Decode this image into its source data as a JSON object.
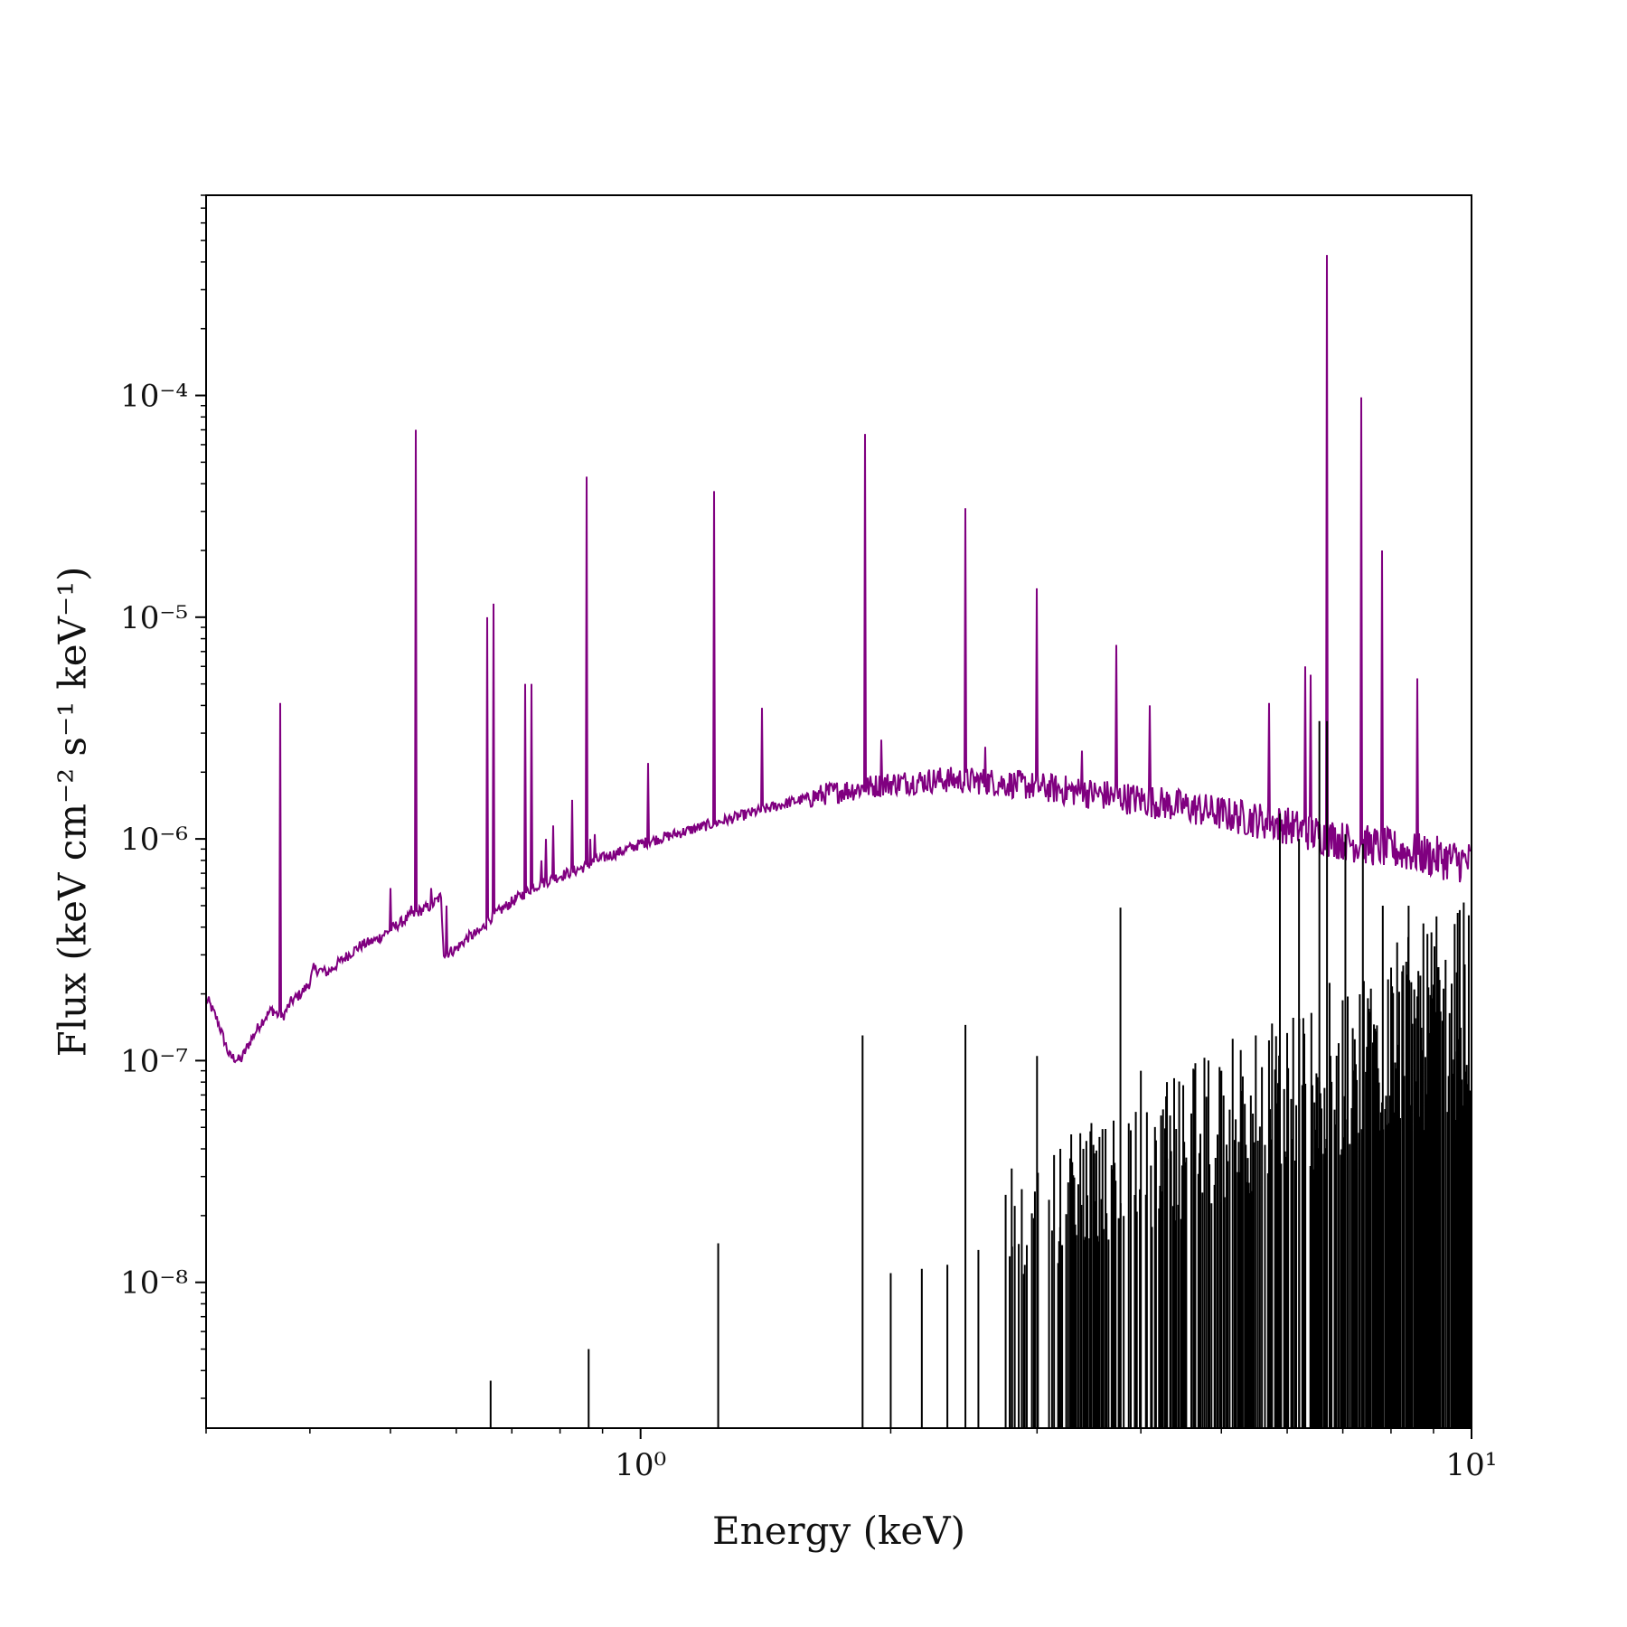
{
  "chart_data": {
    "type": "line",
    "title": "",
    "xlabel": "Energy (keV)",
    "ylabel": "Flux (keV cm⁻² s⁻¹ keV⁻¹)",
    "xscale": "log",
    "yscale": "log",
    "xlim": [
      0.3,
      10
    ],
    "ylim": [
      2.2e-09,
      0.0008
    ],
    "grid": false,
    "legend": "none",
    "x_ticks": [
      {
        "value": 1,
        "label": "10⁰"
      },
      {
        "value": 10,
        "label": "10¹"
      }
    ],
    "y_ticks": [
      {
        "value": 1e-08,
        "label": "10⁻⁸"
      },
      {
        "value": 1e-07,
        "label": "10⁻⁷"
      },
      {
        "value": 1e-06,
        "label": "10⁻⁶"
      },
      {
        "value": 1e-05,
        "label": "10⁻⁵"
      },
      {
        "value": 0.0001,
        "label": "10⁻⁴"
      }
    ],
    "series": [
      {
        "color": "#800080",
        "continuum": [
          [
            0.302,
            1.85e-07
          ],
          [
            0.31,
            1.5e-07
          ],
          [
            0.32,
            1.05e-07
          ],
          [
            0.33,
            1e-07
          ],
          [
            0.34,
            1.25e-07
          ],
          [
            0.35,
            1.5e-07
          ],
          [
            0.36,
            1.7e-07
          ],
          [
            0.37,
            1.55e-07
          ],
          [
            0.38,
            1.85e-07
          ],
          [
            0.39,
            2e-07
          ],
          [
            0.4,
            2.25e-07
          ],
          [
            0.404,
            2.6e-07
          ],
          [
            0.42,
            2.5e-07
          ],
          [
            0.44,
            2.9e-07
          ],
          [
            0.46,
            3.3e-07
          ],
          [
            0.48,
            3.5e-07
          ],
          [
            0.5,
            3.9e-07
          ],
          [
            0.52,
            4.3e-07
          ],
          [
            0.54,
            4.7e-07
          ],
          [
            0.56,
            5e-07
          ],
          [
            0.575,
            5.5e-07
          ],
          [
            0.58,
            3e-07
          ],
          [
            0.6,
            3.2e-07
          ],
          [
            0.62,
            3.6e-07
          ],
          [
            0.64,
            3.8e-07
          ],
          [
            0.66,
            4.4e-07
          ],
          [
            0.68,
            4.8e-07
          ],
          [
            0.7,
            5.2e-07
          ],
          [
            0.72,
            5.6e-07
          ],
          [
            0.74,
            6e-07
          ],
          [
            0.76,
            6.3e-07
          ],
          [
            0.8,
            6.8e-07
          ],
          [
            0.85,
            7.4e-07
          ],
          [
            0.9,
            8.2e-07
          ],
          [
            0.95,
            8.8e-07
          ],
          [
            1.0,
            9.5e-07
          ],
          [
            1.1,
            1.05e-06
          ],
          [
            1.2,
            1.15e-06
          ],
          [
            1.3,
            1.25e-06
          ],
          [
            1.4,
            1.35e-06
          ],
          [
            1.5,
            1.45e-06
          ],
          [
            1.7,
            1.62e-06
          ],
          [
            2.0,
            1.78e-06
          ],
          [
            2.3,
            1.85e-06
          ],
          [
            2.6,
            1.82e-06
          ],
          [
            3.0,
            1.72e-06
          ],
          [
            3.5,
            1.6e-06
          ],
          [
            4.0,
            1.5e-06
          ],
          [
            4.5,
            1.4e-06
          ],
          [
            5.0,
            1.3e-06
          ],
          [
            5.5,
            1.22e-06
          ],
          [
            6.0,
            1.15e-06
          ],
          [
            6.5,
            1.05e-06
          ],
          [
            7.0,
            9.8e-07
          ],
          [
            8.0,
            9e-07
          ],
          [
            9.0,
            8.3e-07
          ],
          [
            10.0,
            7.8e-07
          ]
        ],
        "lines": [
          [
            0.368,
            4.1e-06
          ],
          [
            0.5,
            6e-07
          ],
          [
            0.53,
            5e-07
          ],
          [
            0.5365,
            7e-05
          ],
          [
            0.56,
            6e-07
          ],
          [
            0.5835,
            5e-07
          ],
          [
            0.654,
            1e-05
          ],
          [
            0.6655,
            1.15e-05
          ],
          [
            0.726,
            5e-06
          ],
          [
            0.739,
            5e-06
          ],
          [
            0.76,
            8e-07
          ],
          [
            0.77,
            1e-06
          ],
          [
            0.785,
            1.15e-06
          ],
          [
            0.8265,
            1.5e-06
          ],
          [
            0.862,
            4.3e-05
          ],
          [
            0.87,
            1e-06
          ],
          [
            0.875,
            8e-07
          ],
          [
            0.88,
            1.05e-06
          ],
          [
            1.022,
            2.2e-06
          ],
          [
            1.2253,
            3.7e-05
          ],
          [
            1.4,
            3.9e-06
          ],
          [
            1.8646,
            6.7e-05
          ],
          [
            1.95,
            2.8e-06
          ],
          [
            2.4613,
            3.1e-05
          ],
          [
            2.6,
            2.6e-06
          ],
          [
            3.0,
            1.35e-05
          ],
          [
            3.4,
            2.5e-06
          ],
          [
            3.733,
            7.5e-06
          ],
          [
            4.1,
            4e-06
          ],
          [
            5.7,
            4.1e-06
          ],
          [
            6.3,
            6e-06
          ],
          [
            6.4,
            5.5e-06
          ],
          [
            6.7,
            0.00043
          ],
          [
            7.37,
            9.8e-05
          ],
          [
            7.8,
            2e-05
          ],
          [
            8.6,
            5.3e-06
          ]
        ]
      },
      {
        "color": "#000000",
        "lines": [
          [
            0.66,
            3.6e-09
          ],
          [
            0.866,
            5e-09
          ],
          [
            1.24,
            1.5e-08
          ],
          [
            1.85,
            1.3e-07
          ],
          [
            2.0,
            1.1e-08
          ],
          [
            2.18,
            1.15e-08
          ],
          [
            2.34,
            1.2e-08
          ],
          [
            2.46,
            1.45e-07
          ],
          [
            2.55,
            1.4e-08
          ],
          [
            2.8,
            1.45e-08
          ],
          [
            3.0,
            1.05e-07
          ],
          [
            3.2,
            4e-08
          ],
          [
            3.78,
            4.9e-07
          ],
          [
            4.0,
            9e-08
          ],
          [
            4.3,
            8e-08
          ],
          [
            5.0,
            9e-08
          ],
          [
            5.5,
            1.3e-07
          ],
          [
            5.88,
            1.3e-06
          ],
          [
            6.2,
            1e-06
          ],
          [
            6.56,
            3.4e-06
          ],
          [
            6.7,
            3.4e-06
          ],
          [
            7.05,
            1.05e-06
          ],
          [
            7.4,
            9.5e-07
          ],
          [
            7.82,
            5e-07
          ],
          [
            8.4,
            5e-07
          ],
          [
            9.0,
            2.2e-07
          ],
          [
            9.6,
            2.5e-07
          ]
        ]
      }
    ]
  }
}
